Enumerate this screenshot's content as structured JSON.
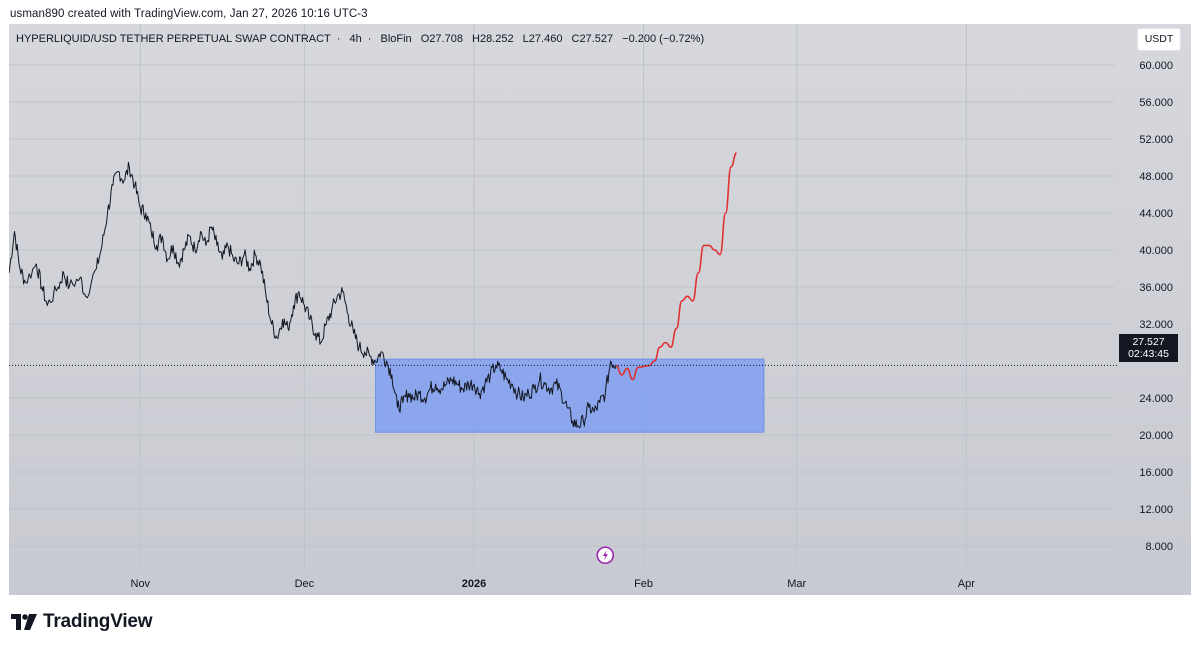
{
  "credit": "usman890 created with TradingView.com, Jan 27, 2026 10:16 UTC-3",
  "header": {
    "symbol": "HYPERLIQUID/USD TETHER PERPETUAL SWAP CONTRACT",
    "interval": "4h",
    "exchange": "BloFin",
    "ohlc": {
      "open": "O27.708",
      "high": "H28.252",
      "low": "L27.460",
      "close": "C27.527",
      "change": "−0.200 (−0.72%)"
    },
    "currency": "USDT"
  },
  "price_badge": {
    "price": "27.527",
    "countdown": "02:43:45"
  },
  "footer": {
    "brand": "TradingView"
  },
  "icons": {
    "event_marker": "lightning-icon",
    "brand_logo": "tradingview-logo-icon"
  },
  "colors": {
    "price_line": "#131722",
    "forecast_line": "#e03131",
    "range_box": "#7f9ff0",
    "event_marker": "#9c27b0"
  },
  "chart_data": {
    "type": "line",
    "title": "",
    "xlabel": "",
    "ylabel": "",
    "ylim": [
      4,
      64
    ],
    "y_ticks": [
      "60.000",
      "56.000",
      "52.000",
      "48.000",
      "44.000",
      "40.000",
      "36.000",
      "32.000",
      "24.000",
      "20.000",
      "16.000",
      "12.000",
      "8.000"
    ],
    "x_ticks": [
      {
        "label": "Nov",
        "date": "2025-11-01",
        "bold": false
      },
      {
        "label": "Dec",
        "date": "2025-12-01",
        "bold": false
      },
      {
        "label": "2026",
        "date": "2026-01-01",
        "bold": true
      },
      {
        "label": "Feb",
        "date": "2026-02-01",
        "bold": false
      },
      {
        "label": "Mar",
        "date": "2026-03-01",
        "bold": false
      },
      {
        "label": "Apr",
        "date": "2026-04-01",
        "bold": false
      }
    ],
    "x_range": [
      "2025-10-08",
      "2026-04-28"
    ],
    "last_price": 27.527,
    "series": [
      {
        "style": "price",
        "points": [
          [
            "2025-10-08",
            37.5
          ],
          [
            "2025-10-09",
            42.0
          ],
          [
            "2025-10-10",
            38.0
          ],
          [
            "2025-10-11",
            36.5
          ],
          [
            "2025-10-13",
            38.5
          ],
          [
            "2025-10-14",
            36.0
          ],
          [
            "2025-10-15",
            34.0
          ],
          [
            "2025-10-17",
            36.0
          ],
          [
            "2025-10-18",
            37.5
          ],
          [
            "2025-10-19",
            36.0
          ],
          [
            "2025-10-21",
            37.0
          ],
          [
            "2025-10-22",
            35.0
          ],
          [
            "2025-10-24",
            38.0
          ],
          [
            "2025-10-25",
            40.5
          ],
          [
            "2025-10-26",
            44.0
          ],
          [
            "2025-10-27",
            47.0
          ],
          [
            "2025-10-28",
            48.5
          ],
          [
            "2025-10-29",
            47.5
          ],
          [
            "2025-10-30",
            49.0
          ],
          [
            "2025-10-31",
            47.0
          ],
          [
            "2025-11-01",
            44.5
          ],
          [
            "2025-11-02",
            44.0
          ],
          [
            "2025-11-03",
            42.0
          ],
          [
            "2025-11-04",
            40.5
          ],
          [
            "2025-11-05",
            41.5
          ],
          [
            "2025-11-06",
            39.0
          ],
          [
            "2025-11-07",
            40.5
          ],
          [
            "2025-11-08",
            38.5
          ],
          [
            "2025-11-09",
            40.0
          ],
          [
            "2025-11-10",
            41.5
          ],
          [
            "2025-11-11",
            40.0
          ],
          [
            "2025-11-12",
            42.0
          ],
          [
            "2025-11-13",
            40.5
          ],
          [
            "2025-11-14",
            42.5
          ],
          [
            "2025-11-15",
            40.5
          ],
          [
            "2025-11-16",
            39.0
          ],
          [
            "2025-11-17",
            40.5
          ],
          [
            "2025-11-18",
            39.0
          ],
          [
            "2025-11-19",
            38.5
          ],
          [
            "2025-11-20",
            39.5
          ],
          [
            "2025-11-21",
            38.0
          ],
          [
            "2025-11-22",
            39.5
          ],
          [
            "2025-11-23",
            38.5
          ],
          [
            "2025-11-24",
            35.0
          ],
          [
            "2025-11-25",
            32.0
          ],
          [
            "2025-11-26",
            30.5
          ],
          [
            "2025-11-27",
            32.5
          ],
          [
            "2025-11-28",
            31.5
          ],
          [
            "2025-11-29",
            34.0
          ],
          [
            "2025-11-30",
            35.5
          ],
          [
            "2025-12-01",
            34.0
          ],
          [
            "2025-12-02",
            32.5
          ],
          [
            "2025-12-03",
            31.0
          ],
          [
            "2025-12-04",
            30.0
          ],
          [
            "2025-12-05",
            32.0
          ],
          [
            "2025-12-06",
            33.5
          ],
          [
            "2025-12-07",
            35.0
          ],
          [
            "2025-12-08",
            35.5
          ],
          [
            "2025-12-09",
            33.0
          ],
          [
            "2025-12-10",
            31.0
          ],
          [
            "2025-12-11",
            29.5
          ],
          [
            "2025-12-12",
            29.0
          ],
          [
            "2025-12-13",
            28.5
          ],
          [
            "2025-12-14",
            28.0
          ],
          [
            "2025-12-15",
            29.0
          ],
          [
            "2025-12-16",
            28.0
          ],
          [
            "2025-12-17",
            26.5
          ],
          [
            "2025-12-18",
            23.0
          ],
          [
            "2025-12-19",
            23.5
          ],
          [
            "2025-12-20",
            24.5
          ],
          [
            "2025-12-21",
            24.0
          ],
          [
            "2025-12-22",
            24.5
          ],
          [
            "2025-12-23",
            24.0
          ],
          [
            "2025-12-24",
            25.0
          ],
          [
            "2025-12-25",
            25.5
          ],
          [
            "2025-12-26",
            25.0
          ],
          [
            "2025-12-27",
            25.5
          ],
          [
            "2025-12-28",
            26.0
          ],
          [
            "2025-12-29",
            25.5
          ],
          [
            "2025-12-30",
            25.0
          ],
          [
            "2025-12-31",
            25.5
          ],
          [
            "2026-01-01",
            25.5
          ],
          [
            "2026-01-02",
            24.5
          ],
          [
            "2026-01-03",
            25.5
          ],
          [
            "2026-01-04",
            26.5
          ],
          [
            "2026-01-05",
            27.5
          ],
          [
            "2026-01-06",
            27.0
          ],
          [
            "2026-01-07",
            26.0
          ],
          [
            "2026-01-08",
            25.5
          ],
          [
            "2026-01-09",
            24.5
          ],
          [
            "2026-01-10",
            24.0
          ],
          [
            "2026-01-11",
            24.5
          ],
          [
            "2026-01-12",
            25.0
          ],
          [
            "2026-01-13",
            26.0
          ],
          [
            "2026-01-14",
            25.5
          ],
          [
            "2026-01-15",
            25.0
          ],
          [
            "2026-01-16",
            25.5
          ],
          [
            "2026-01-17",
            24.5
          ],
          [
            "2026-01-18",
            23.0
          ],
          [
            "2026-01-19",
            21.5
          ],
          [
            "2026-01-20",
            21.0
          ],
          [
            "2026-01-21",
            21.5
          ],
          [
            "2026-01-22",
            23.0
          ],
          [
            "2026-01-23",
            22.5
          ],
          [
            "2026-01-24",
            23.5
          ],
          [
            "2026-01-25",
            24.5
          ],
          [
            "2026-01-26",
            28.0
          ],
          [
            "2026-01-27",
            27.527
          ]
        ]
      },
      {
        "style": "forecast",
        "points": [
          [
            "2026-01-27",
            27.5
          ],
          [
            "2026-01-28",
            26.5
          ],
          [
            "2026-01-29",
            27.2
          ],
          [
            "2026-01-30",
            26.0
          ],
          [
            "2026-01-31",
            27.3
          ],
          [
            "2026-02-02",
            27.5
          ],
          [
            "2026-02-03",
            28.0
          ],
          [
            "2026-02-04",
            29.5
          ],
          [
            "2026-02-05",
            30.0
          ],
          [
            "2026-02-06",
            29.5
          ],
          [
            "2026-02-07",
            31.5
          ],
          [
            "2026-02-08",
            34.5
          ],
          [
            "2026-02-09",
            35.0
          ],
          [
            "2026-02-10",
            34.5
          ],
          [
            "2026-02-11",
            37.5
          ],
          [
            "2026-02-12",
            40.5
          ],
          [
            "2026-02-13",
            40.5
          ],
          [
            "2026-02-14",
            40.0
          ],
          [
            "2026-02-15",
            39.5
          ],
          [
            "2026-02-16",
            44.0
          ],
          [
            "2026-02-17",
            49.0
          ],
          [
            "2026-02-18",
            50.5
          ]
        ]
      }
    ],
    "range_box": {
      "x_start": "2025-12-14",
      "x_end": "2026-02-23",
      "y_low": 20.3,
      "y_high": 28.2
    },
    "event_marker": {
      "date": "2026-01-25",
      "y": 7.0
    },
    "grid": true,
    "legend": "top-left"
  }
}
